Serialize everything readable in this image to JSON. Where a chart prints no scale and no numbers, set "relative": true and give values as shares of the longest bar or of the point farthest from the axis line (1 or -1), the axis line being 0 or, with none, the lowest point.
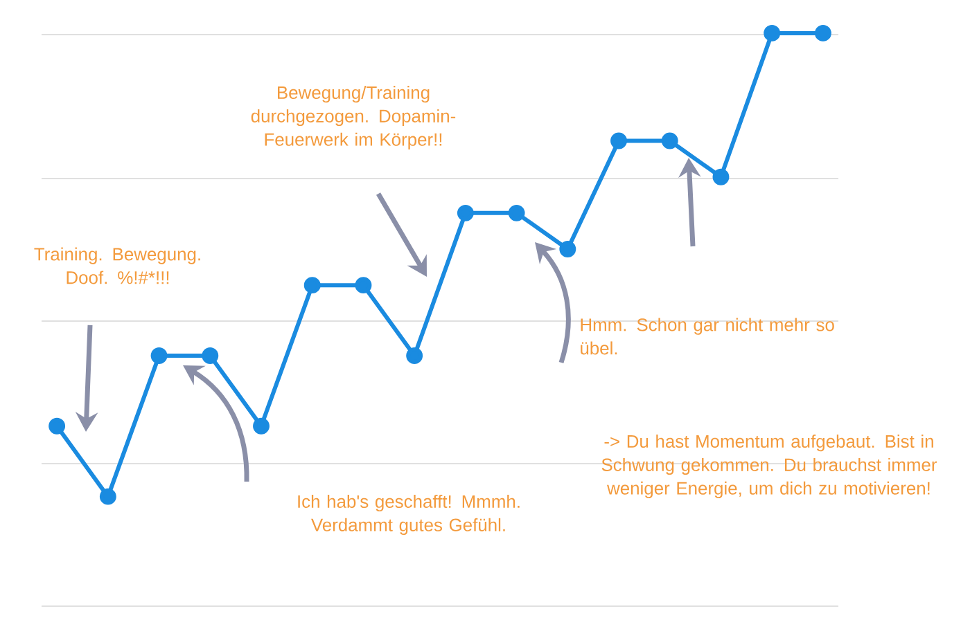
{
  "chart_data": {
    "type": "line",
    "relative": true,
    "categories": [
      null,
      null,
      null,
      null,
      null,
      null,
      null,
      null,
      null,
      null,
      null,
      null,
      null,
      null,
      null,
      null
    ],
    "series": [
      {
        "color": "#1a8be0",
        "values": [
          0.314,
          0.191,
          0.437,
          0.437,
          0.314,
          0.56,
          0.56,
          0.437,
          0.686,
          0.686,
          0.623,
          0.812,
          0.812,
          0.749,
          1,
          1
        ]
      }
    ],
    "marker": "circle",
    "grid": "y",
    "tick_labels": false,
    "annotations": [
      "Training. Bewegung. Doof. %!#*!!!",
      "Bewegung/Training durchgezogen. Dopamin-Feuerwerk im Körper!!",
      "Ich hab's geschafft! Mmmh. Verdammt gutes Gefühl.",
      "Hmm. Schon gar nicht mehr so übel.",
      "-> Du hast Momentum aufgebaut. Bist in Schwung gekommen. Du brauchst immer weniger Energie, um dich zu motivieren!"
    ]
  }
}
